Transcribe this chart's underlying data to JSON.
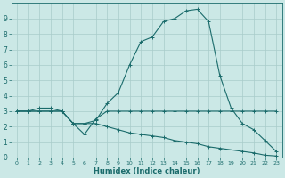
{
  "xlabel": "Humidex (Indice chaleur)",
  "bg_color": "#cbe8e6",
  "grid_color": "#a8ccca",
  "line_color": "#1a6b6b",
  "xlim": [
    -0.5,
    23.5
  ],
  "ylim": [
    0,
    10
  ],
  "line1_x": [
    0,
    1,
    2,
    3,
    4,
    5,
    6,
    7,
    8,
    9,
    10,
    11,
    12,
    13,
    14,
    15,
    16,
    17,
    18,
    19,
    20,
    21,
    22,
    23
  ],
  "line1_y": [
    3.0,
    3.0,
    3.0,
    3.0,
    3.0,
    2.2,
    2.2,
    2.2,
    2.0,
    1.8,
    1.6,
    1.5,
    1.4,
    1.3,
    1.1,
    1.0,
    0.9,
    0.7,
    0.6,
    0.5,
    0.4,
    0.3,
    0.15,
    0.1
  ],
  "line2_x": [
    0,
    1,
    2,
    3,
    4,
    5,
    6,
    7,
    8,
    9,
    10,
    11,
    12,
    13,
    14,
    15,
    16,
    17,
    18,
    19,
    20,
    21,
    22,
    23
  ],
  "line2_y": [
    3.0,
    3.0,
    3.2,
    3.2,
    3.0,
    2.2,
    2.2,
    2.4,
    3.5,
    4.2,
    6.0,
    7.5,
    7.8,
    8.8,
    9.0,
    9.5,
    9.6,
    8.8,
    5.3,
    3.2,
    2.2,
    1.8,
    1.1,
    0.4
  ],
  "line3_x": [
    0,
    1,
    2,
    3,
    4,
    5,
    6,
    7,
    8,
    9,
    10,
    11,
    12,
    13,
    14,
    15,
    16,
    17,
    18,
    19,
    20,
    21,
    22,
    23
  ],
  "line3_y": [
    3.0,
    3.0,
    3.0,
    3.0,
    3.0,
    2.2,
    1.5,
    2.5,
    3.0,
    3.0,
    3.0,
    3.0,
    3.0,
    3.0,
    3.0,
    3.0,
    3.0,
    3.0,
    3.0,
    3.0,
    3.0,
    3.0,
    3.0,
    3.0
  ],
  "xtick_labels": [
    "0",
    "1",
    "2",
    "3",
    "4",
    "5",
    "6",
    "7",
    "8",
    "9",
    "10",
    "11",
    "12",
    "13",
    "14",
    "15",
    "16",
    "17",
    "18",
    "19",
    "20",
    "21",
    "22",
    "23"
  ],
  "ytick_labels": [
    "0",
    "1",
    "2",
    "3",
    "4",
    "5",
    "6",
    "7",
    "8",
    "9"
  ]
}
